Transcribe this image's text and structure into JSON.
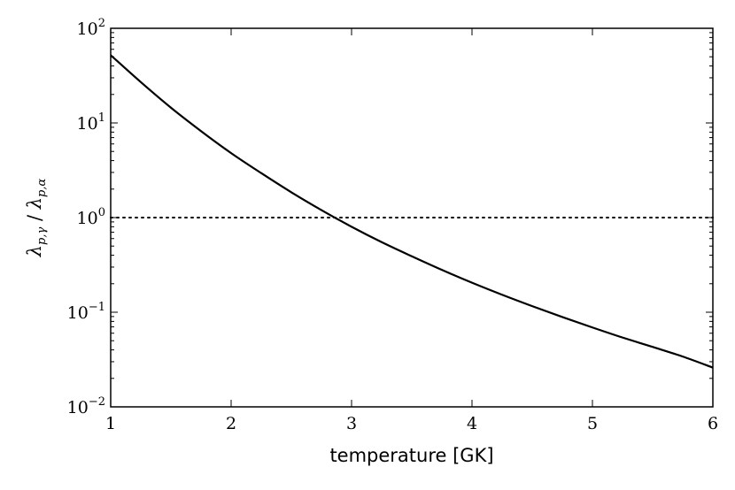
{
  "chart_data": {
    "type": "line",
    "title": "",
    "xlabel": "temperature [GK]",
    "ylabel": {
      "symbol": "λ",
      "numerator_sub": "p,γ",
      "separator": " / ",
      "denominator_sub": "p,α"
    },
    "xlim": [
      1,
      6
    ],
    "ylim": [
      0.01,
      100
    ],
    "yscale": "log",
    "grid": false,
    "legend": "none",
    "x_ticks": [
      "1",
      "2",
      "3",
      "4",
      "5",
      "6"
    ],
    "x_tick_values": [
      1,
      2,
      3,
      4,
      5,
      6
    ],
    "y_ticks": [
      {
        "value": 0.01,
        "base": "10",
        "exp": "−2"
      },
      {
        "value": 0.1,
        "base": "10",
        "exp": "−1"
      },
      {
        "value": 1,
        "base": "10",
        "exp": "0"
      },
      {
        "value": 10,
        "base": "10",
        "exp": "1"
      },
      {
        "value": 100,
        "base": "10",
        "exp": "2"
      }
    ],
    "series": [
      {
        "style": "solid",
        "color": "#000000",
        "x": [
          1.0,
          1.25,
          1.5,
          1.75,
          2.0,
          2.25,
          2.5,
          2.75,
          3.0,
          3.25,
          3.5,
          3.75,
          4.0,
          4.25,
          4.5,
          4.75,
          5.0,
          5.25,
          5.5,
          5.75,
          6.0
        ],
        "y": [
          52,
          27,
          14.5,
          8.2,
          4.8,
          2.95,
          1.85,
          1.2,
          0.8,
          0.55,
          0.39,
          0.28,
          0.205,
          0.153,
          0.116,
          0.089,
          0.069,
          0.054,
          0.043,
          0.034,
          0.026
        ]
      }
    ],
    "reference_lines": [
      {
        "orientation": "horizontal",
        "y": 1,
        "style": "dotted",
        "color": "#000000"
      }
    ]
  }
}
